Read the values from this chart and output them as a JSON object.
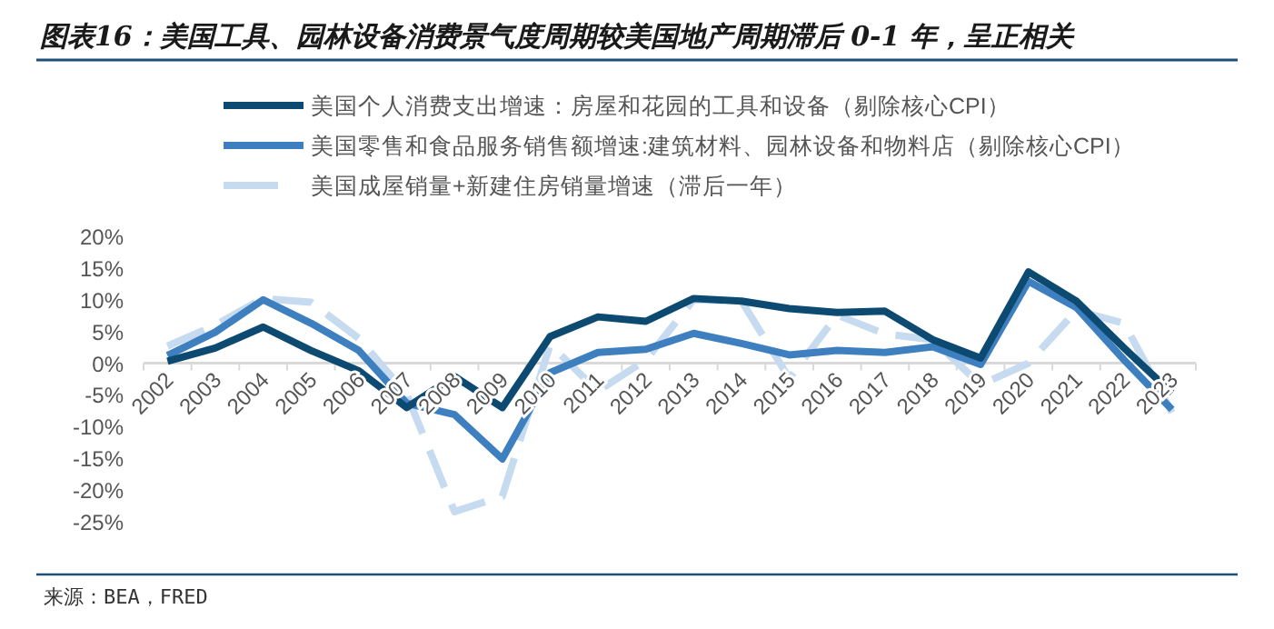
{
  "chart_data": {
    "type": "line",
    "title": "图表16：美国工具、园林设备消费景气度周期较美国地产周期滞后 0-1 年，呈正相关",
    "categories": [
      "2002",
      "2003",
      "2004",
      "2005",
      "2006",
      "2007",
      "2008",
      "2009",
      "2010",
      "2011",
      "2012",
      "2013",
      "2014",
      "2015",
      "2016",
      "2017",
      "2018",
      "2019",
      "2020",
      "2021",
      "2022",
      "2023"
    ],
    "series": [
      {
        "name": "美国个人消费支出增速：房屋和花园的工具和设备（剔除核心CPI）",
        "color": "#0d4a72",
        "line_style": "solid",
        "values": [
          0.3,
          2.4,
          5.7,
          2,
          -1.2,
          -7,
          -2.1,
          -7,
          4.2,
          7.3,
          6.6,
          10.2,
          9.8,
          8.6,
          8,
          8.2,
          3.7,
          0.8,
          14.4,
          9.8,
          2.4,
          -4.7
        ]
      },
      {
        "name": "美国零售和食品服务销售额增速:建筑材料、园林设备和物料店（剔除核心CPI）",
        "color": "#3d7fbf",
        "line_style": "solid",
        "values": [
          1.2,
          4.9,
          10,
          6.3,
          2,
          -6.3,
          -8.1,
          -15.1,
          -1.5,
          1.7,
          2.2,
          4.7,
          3.1,
          1.3,
          2,
          1.7,
          2.6,
          -0.2,
          12.9,
          8.8,
          0.5,
          -7.3
        ]
      },
      {
        "name": "美国成屋销量+新建住房销量增速（滞后一年）",
        "color": "#c6dbef",
        "line_style": "dashed",
        "values": [
          2.7,
          6,
          10.2,
          9.6,
          3.9,
          -4.9,
          -23.4,
          -21,
          2.9,
          -4.4,
          0.5,
          10,
          9.8,
          -2.4,
          7.6,
          4.6,
          3.7,
          -3.4,
          0,
          8.3,
          6.3,
          -7.8
        ]
      }
    ],
    "ylim": [
      -25,
      20
    ],
    "yticks": [
      {
        "value": 20,
        "label": "20%"
      },
      {
        "value": 15,
        "label": "15%"
      },
      {
        "value": 10,
        "label": "10%"
      },
      {
        "value": 5,
        "label": "5%"
      },
      {
        "value": 0,
        "label": "0%"
      },
      {
        "value": -5,
        "label": "-5%"
      },
      {
        "value": -10,
        "label": "-10%"
      },
      {
        "value": -15,
        "label": "-15%"
      },
      {
        "value": -20,
        "label": "-20%"
      },
      {
        "value": -25,
        "label": "-25%"
      }
    ],
    "legend": "top",
    "grid": false,
    "annotations": [
      "来源：BEA，FRED"
    ]
  }
}
